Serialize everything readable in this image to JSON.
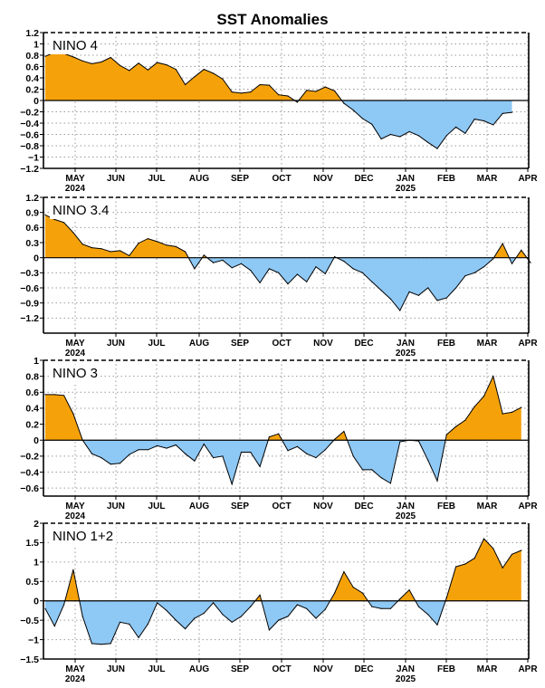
{
  "title": "SST Anomalies",
  "colors": {
    "positive": "#F5A20A",
    "negative": "#8EC8F5",
    "line": "#000000"
  },
  "months": [
    "MAY",
    "JUN",
    "JUL",
    "AUG",
    "SEP",
    "OCT",
    "NOV",
    "DEC",
    "JAN",
    "FEB",
    "MAR",
    "APR"
  ],
  "years": [
    {
      "label": "2024",
      "under": "MAY"
    },
    {
      "label": "2025",
      "under": "JAN"
    }
  ],
  "chart_data": [
    {
      "type": "area",
      "title": "NINO 4",
      "ylim": [
        -1.2,
        1.2
      ],
      "yticks": [
        "1.2",
        "1",
        "0.8",
        "0.6",
        "0.4",
        "0.2",
        "0",
        "−0.2",
        "−0.4",
        "−0.6",
        "−0.8",
        "−1",
        "−1.2"
      ],
      "ytick_values": [
        1.2,
        1,
        0.8,
        0.6,
        0.4,
        0.2,
        0,
        -0.2,
        -0.4,
        -0.6,
        -0.8,
        -1,
        -1.2
      ],
      "x_week_start": 0,
      "values": [
        0.78,
        0.85,
        0.83,
        0.77,
        0.7,
        0.65,
        0.68,
        0.76,
        0.62,
        0.53,
        0.66,
        0.54,
        0.67,
        0.63,
        0.55,
        0.28,
        0.42,
        0.55,
        0.48,
        0.38,
        0.15,
        0.13,
        0.15,
        0.28,
        0.27,
        0.1,
        0.08,
        -0.03,
        0.18,
        0.16,
        0.24,
        0.17,
        -0.05,
        -0.17,
        -0.32,
        -0.42,
        -0.68,
        -0.6,
        -0.64,
        -0.55,
        -0.62,
        -0.74,
        -0.85,
        -0.62,
        -0.47,
        -0.58,
        -0.33,
        -0.36,
        -0.43,
        -0.23,
        -0.21
      ]
    },
    {
      "type": "area",
      "title": "NINO 3.4",
      "ylim": [
        -1.5,
        1.2
      ],
      "yticks": [
        "1.2",
        "0.9",
        "0.6",
        "0.3",
        "0",
        "−0.3",
        "−0.6",
        "−0.9",
        "−1.2"
      ],
      "ytick_values": [
        1.2,
        0.9,
        0.6,
        0.3,
        0,
        -0.3,
        -0.6,
        -0.9,
        -1.2
      ],
      "x_week_start": 0,
      "values": [
        0.85,
        0.76,
        0.7,
        0.5,
        0.27,
        0.2,
        0.18,
        0.12,
        0.14,
        0.04,
        0.29,
        0.38,
        0.32,
        0.25,
        0.22,
        0.12,
        -0.22,
        0.05,
        -0.1,
        -0.05,
        -0.2,
        -0.12,
        -0.25,
        -0.5,
        -0.22,
        -0.3,
        -0.52,
        -0.33,
        -0.48,
        -0.18,
        -0.32,
        0.02,
        -0.07,
        -0.22,
        -0.3,
        -0.48,
        -0.65,
        -0.82,
        -1.05,
        -0.68,
        -0.75,
        -0.6,
        -0.85,
        -0.8,
        -0.6,
        -0.36,
        -0.3,
        -0.18,
        -0.02,
        0.28,
        -0.12,
        0.15,
        -0.1
      ]
    },
    {
      "type": "area",
      "title": "NINO 3",
      "ylim": [
        -0.7,
        1.0
      ],
      "yticks": [
        "1",
        "0.8",
        "0.6",
        "0.4",
        "0.2",
        "0",
        "−0.2",
        "−0.4",
        "−0.6"
      ],
      "ytick_values": [
        1,
        0.8,
        0.6,
        0.4,
        0.2,
        0,
        -0.2,
        -0.4,
        -0.6
      ],
      "x_week_start": 0,
      "values": [
        0.57,
        0.57,
        0.56,
        0.33,
        0.0,
        -0.17,
        -0.22,
        -0.3,
        -0.29,
        -0.18,
        -0.12,
        -0.12,
        -0.07,
        -0.1,
        -0.06,
        -0.17,
        -0.26,
        -0.05,
        -0.22,
        -0.2,
        -0.55,
        -0.15,
        -0.15,
        -0.33,
        0.04,
        0.08,
        -0.13,
        -0.08,
        -0.17,
        -0.22,
        -0.12,
        0.01,
        0.11,
        -0.2,
        -0.37,
        -0.37,
        -0.47,
        -0.54,
        -0.02,
        0.0,
        -0.01,
        -0.25,
        -0.51,
        0.07,
        0.17,
        0.25,
        0.42,
        0.55,
        0.8,
        0.33,
        0.35,
        0.41
      ]
    },
    {
      "type": "area",
      "title": "NINO 1+2",
      "ylim": [
        -1.5,
        2.0
      ],
      "yticks": [
        "2",
        "1.5",
        "1",
        "0.5",
        "0",
        "−0.5",
        "−1",
        "−1.5"
      ],
      "ytick_values": [
        2,
        1.5,
        1,
        0.5,
        0,
        -0.5,
        -1,
        -1.5
      ],
      "x_week_start": 0,
      "values": [
        -0.2,
        -0.65,
        -0.1,
        0.8,
        -0.4,
        -1.1,
        -1.12,
        -1.1,
        -0.55,
        -0.6,
        -0.95,
        -0.6,
        -0.05,
        -0.25,
        -0.5,
        -0.72,
        -0.45,
        -0.32,
        -0.05,
        -0.35,
        -0.55,
        -0.4,
        -0.15,
        0.15,
        -0.75,
        -0.5,
        -0.4,
        -0.1,
        -0.2,
        -0.45,
        -0.22,
        0.2,
        0.75,
        0.35,
        0.2,
        -0.15,
        -0.2,
        -0.2,
        0.05,
        0.28,
        -0.15,
        -0.35,
        -0.62,
        0.08,
        0.88,
        0.95,
        1.1,
        1.6,
        1.35,
        0.85,
        1.2,
        1.3
      ]
    }
  ]
}
